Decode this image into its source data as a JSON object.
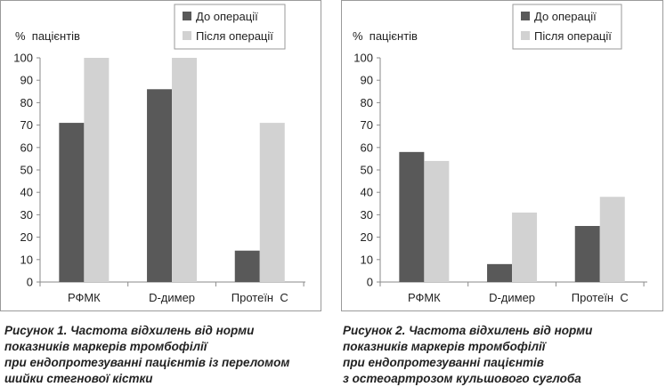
{
  "figures": [
    {
      "caption_lines": [
        "Рисунок 1. Частота відхилень від норми",
        "показників маркерів тромбофілії",
        "при ендопротезуванні пацієнтів із переломом",
        "шийки стегнової кістки"
      ],
      "chart_data": {
        "type": "bar",
        "ylabel": "%  пацієнтів",
        "ylim": [
          0,
          100
        ],
        "yticks": [
          0,
          10,
          20,
          30,
          40,
          50,
          60,
          70,
          80,
          90,
          100
        ],
        "categories": [
          "РФМК",
          "D-димер",
          "Протеїн  С"
        ],
        "series": [
          {
            "name": "До операції",
            "color": "#595959",
            "values": [
              71,
              86,
              14
            ]
          },
          {
            "name": "Після операції",
            "color": "#d2d2d2",
            "values": [
              100,
              100,
              71
            ]
          }
        ],
        "legend": "top-right",
        "grid": false
      }
    },
    {
      "caption_lines": [
        "Рисунок 2. Частота відхилень від норми",
        "показників маркерів тромбофілії",
        "при ендопротезуванні пацієнтів",
        "з остеоартрозом кульшового суглоба"
      ],
      "chart_data": {
        "type": "bar",
        "ylabel": "%  пацієнтів",
        "ylim": [
          0,
          100
        ],
        "yticks": [
          0,
          10,
          20,
          30,
          40,
          50,
          60,
          70,
          80,
          90,
          100
        ],
        "categories": [
          "РФМК",
          "D-димер",
          "Протеїн  С"
        ],
        "series": [
          {
            "name": "До операції",
            "color": "#595959",
            "values": [
              58,
              8,
              25
            ]
          },
          {
            "name": "Після операції",
            "color": "#d2d2d2",
            "values": [
              54,
              31,
              38
            ]
          }
        ],
        "legend": "top-right",
        "grid": false
      }
    }
  ]
}
